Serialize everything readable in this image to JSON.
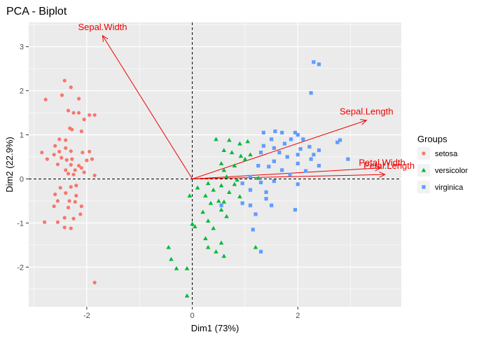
{
  "chart_data": {
    "type": "scatter",
    "title": "PCA - Biplot",
    "xlabel": "Dim1 (73%)",
    "ylabel": "Dim2 (22.9%)",
    "xlim": [
      -3.1,
      3.96
    ],
    "ylim": [
      -2.9,
      3.55
    ],
    "xticks": [
      -2,
      0,
      2
    ],
    "yticks": [
      -2,
      -1,
      0,
      1,
      2,
      3
    ],
    "minor_xticks": [
      -3,
      -1,
      1,
      3
    ],
    "minor_yticks": [
      -2.5,
      -1.5,
      -0.5,
      0.5,
      1.5,
      2.5,
      3.5
    ],
    "legend": {
      "title": "Groups",
      "position": "right"
    },
    "colors": {
      "setosa": "#f8766d",
      "versicolor": "#00ba38",
      "virginica": "#619cff",
      "arrow": "#ee0000",
      "panel": "#ebebeb",
      "grid": "#ffffff",
      "refline": "#000000"
    },
    "series": [
      {
        "name": "setosa",
        "shape": "circle",
        "points": [
          [
            -2.42,
            2.23
          ],
          [
            -2.3,
            2.08
          ],
          [
            -2.47,
            1.9
          ],
          [
            -2.78,
            1.8
          ],
          [
            -2.15,
            1.82
          ],
          [
            -2.35,
            1.55
          ],
          [
            -1.95,
            1.45
          ],
          [
            -2.15,
            1.5
          ],
          [
            -2.25,
            1.5
          ],
          [
            -1.85,
            1.45
          ],
          [
            -2.05,
            1.35
          ],
          [
            -2.32,
            1.15
          ],
          [
            -2.28,
            1.12
          ],
          [
            -2.1,
            1.08
          ],
          [
            -2.52,
            0.9
          ],
          [
            -2.4,
            0.88
          ],
          [
            -2.6,
            0.75
          ],
          [
            -2.4,
            0.7
          ],
          [
            -2.85,
            0.6
          ],
          [
            -2.62,
            0.55
          ],
          [
            -2.52,
            0.62
          ],
          [
            -2.3,
            0.63
          ],
          [
            -2.08,
            0.6
          ],
          [
            -1.95,
            0.62
          ],
          [
            -2.75,
            0.45
          ],
          [
            -2.48,
            0.48
          ],
          [
            -2.38,
            0.43
          ],
          [
            -2.28,
            0.45
          ],
          [
            -2.0,
            0.42
          ],
          [
            -1.9,
            0.45
          ],
          [
            -2.55,
            0.33
          ],
          [
            -2.3,
            0.32
          ],
          [
            -2.15,
            0.3
          ],
          [
            -2.4,
            0.2
          ],
          [
            -2.22,
            0.2
          ],
          [
            -2.1,
            0.25
          ],
          [
            -2.35,
            0.12
          ],
          [
            -2.25,
            0.1
          ],
          [
            -2.05,
            0.15
          ],
          [
            -1.85,
            0.08
          ],
          [
            -2.5,
            -0.2
          ],
          [
            -2.3,
            -0.18
          ],
          [
            -2.2,
            -0.15
          ],
          [
            -2.6,
            -0.35
          ],
          [
            -2.4,
            -0.32
          ],
          [
            -2.2,
            -0.38
          ],
          [
            -2.55,
            -0.5
          ],
          [
            -2.33,
            -0.5
          ],
          [
            -2.22,
            -0.52
          ],
          [
            -2.1,
            -0.62
          ],
          [
            -2.62,
            -0.62
          ],
          [
            -2.35,
            -0.65
          ],
          [
            -2.42,
            -0.88
          ],
          [
            -2.55,
            -0.98
          ],
          [
            -2.42,
            -1.1
          ],
          [
            -2.25,
            -0.9
          ],
          [
            -2.12,
            -0.8
          ],
          [
            -2.3,
            -1.12
          ],
          [
            -2.8,
            -0.98
          ],
          [
            -1.85,
            -2.35
          ]
        ]
      },
      {
        "name": "versicolor",
        "shape": "triangle",
        "points": [
          [
            0.45,
            0.9
          ],
          [
            0.7,
            0.88
          ],
          [
            0.9,
            0.8
          ],
          [
            1.05,
            0.85
          ],
          [
            0.6,
            0.65
          ],
          [
            0.75,
            0.6
          ],
          [
            0.92,
            0.52
          ],
          [
            1.1,
            0.55
          ],
          [
            0.55,
            0.35
          ],
          [
            0.8,
            0.3
          ],
          [
            0.6,
            0.2
          ],
          [
            1.0,
            0.45
          ],
          [
            0.65,
            0.05
          ],
          [
            1.25,
            0.02
          ],
          [
            0.85,
            -0.02
          ],
          [
            0.3,
            -0.1
          ],
          [
            0.55,
            -0.15
          ],
          [
            0.8,
            -0.12
          ],
          [
            0.1,
            -0.2
          ],
          [
            0.4,
            -0.25
          ],
          [
            -0.05,
            -0.38
          ],
          [
            0.25,
            -0.38
          ],
          [
            0.7,
            -0.3
          ],
          [
            0.9,
            -0.4
          ],
          [
            0.5,
            -0.5
          ],
          [
            0.6,
            -0.52
          ],
          [
            0.35,
            -0.55
          ],
          [
            0.2,
            -0.75
          ],
          [
            0.55,
            -0.7
          ],
          [
            0.0,
            -1.02
          ],
          [
            0.3,
            -0.95
          ],
          [
            0.05,
            -1.08
          ],
          [
            0.4,
            -1.12
          ],
          [
            0.25,
            -1.35
          ],
          [
            0.55,
            -1.45
          ],
          [
            0.3,
            -1.55
          ],
          [
            0.45,
            -1.65
          ],
          [
            0.6,
            -1.75
          ],
          [
            1.2,
            -1.55
          ],
          [
            -0.45,
            -1.55
          ],
          [
            -0.4,
            -1.82
          ],
          [
            -0.3,
            -2.03
          ],
          [
            -0.1,
            -2.03
          ],
          [
            -0.1,
            -2.65
          ],
          [
            0.65,
            -0.85
          ]
        ]
      },
      {
        "name": "virginica",
        "shape": "square",
        "points": [
          [
            2.3,
            2.65
          ],
          [
            2.4,
            2.6
          ],
          [
            2.25,
            1.95
          ],
          [
            1.35,
            1.05
          ],
          [
            1.57,
            1.08
          ],
          [
            1.7,
            1.05
          ],
          [
            1.95,
            1.05
          ],
          [
            2.0,
            1.0
          ],
          [
            1.5,
            0.9
          ],
          [
            1.87,
            0.9
          ],
          [
            2.1,
            0.9
          ],
          [
            1.75,
            0.8
          ],
          [
            2.22,
            0.73
          ],
          [
            1.35,
            0.75
          ],
          [
            1.55,
            0.7
          ],
          [
            2.05,
            0.68
          ],
          [
            2.75,
            0.83
          ],
          [
            2.8,
            0.88
          ],
          [
            2.4,
            0.65
          ],
          [
            1.3,
            0.6
          ],
          [
            1.65,
            0.6
          ],
          [
            2.0,
            0.55
          ],
          [
            2.3,
            0.55
          ],
          [
            1.8,
            0.5
          ],
          [
            1.55,
            0.4
          ],
          [
            2.0,
            0.35
          ],
          [
            2.4,
            0.3
          ],
          [
            1.25,
            0.3
          ],
          [
            1.45,
            0.28
          ],
          [
            1.7,
            0.2
          ],
          [
            2.25,
            0.45
          ],
          [
            2.95,
            0.45
          ],
          [
            1.1,
            0.05
          ],
          [
            1.85,
            0.1
          ],
          [
            2.15,
            0.18
          ],
          [
            0.95,
            -0.1
          ],
          [
            1.3,
            -0.08
          ],
          [
            1.55,
            -0.05
          ],
          [
            2.0,
            -0.12
          ],
          [
            1.1,
            -0.25
          ],
          [
            1.4,
            -0.3
          ],
          [
            1.4,
            -0.45
          ],
          [
            1.5,
            -0.6
          ],
          [
            1.95,
            -0.7
          ],
          [
            0.95,
            -0.55
          ],
          [
            1.1,
            -0.6
          ],
          [
            1.2,
            -0.8
          ],
          [
            0.55,
            -0.6
          ],
          [
            1.15,
            -1.15
          ],
          [
            1.3,
            -1.65
          ]
        ]
      }
    ],
    "arrows": [
      {
        "name": "Sepal.Width",
        "x": -1.7,
        "y": 3.25
      },
      {
        "name": "Sepal.Length",
        "x": 3.3,
        "y": 1.33
      },
      {
        "name": "Petal.Width",
        "x": 3.57,
        "y": 0.25
      },
      {
        "name": "Petal.Length",
        "x": 3.65,
        "y": 0.1
      }
    ]
  }
}
